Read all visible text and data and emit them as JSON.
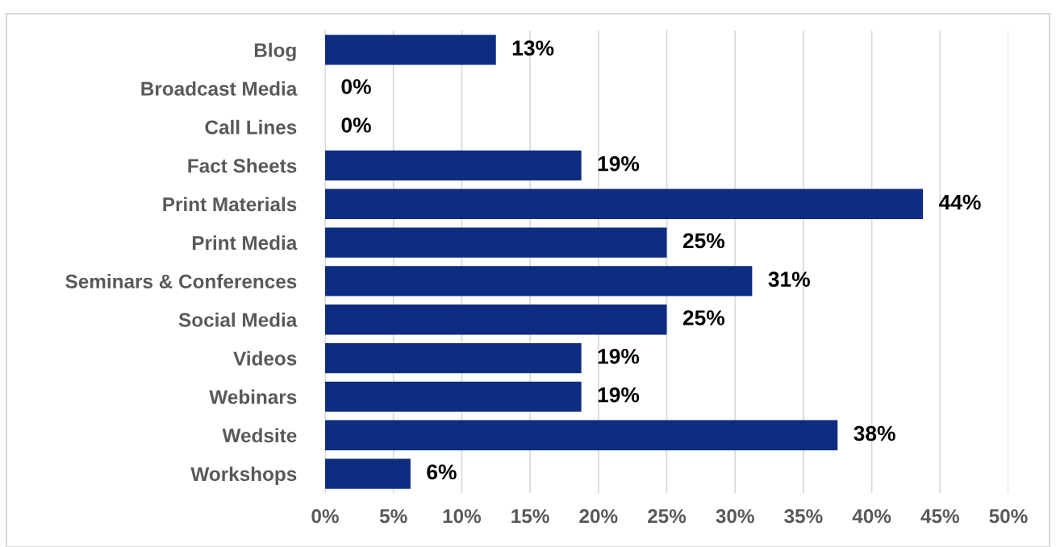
{
  "chart_data": {
    "type": "bar",
    "orientation": "horizontal",
    "categories": [
      "Blog",
      "Broadcast Media",
      "Call Lines",
      "Fact Sheets",
      "Print Materials",
      "Print Media",
      "Seminars & Conferences",
      "Social Media",
      "Videos",
      "Webinars",
      "Wedsite",
      "Workshops"
    ],
    "values": [
      12.5,
      0,
      0,
      18.75,
      43.75,
      25,
      31.25,
      25,
      18.75,
      18.75,
      37.5,
      6.25
    ],
    "value_labels": [
      "13%",
      "0%",
      "0%",
      "19%",
      "44%",
      "25%",
      "31%",
      "25%",
      "19%",
      "19%",
      "38%",
      "6%"
    ],
    "color": "#0e2d80",
    "xlim": [
      0,
      50
    ],
    "xticks": [
      {
        "value": 0,
        "label": "0%"
      },
      {
        "value": 5,
        "label": "5%"
      },
      {
        "value": 10,
        "label": "10%"
      },
      {
        "value": 15,
        "label": "15%"
      },
      {
        "value": 20,
        "label": "20%"
      },
      {
        "value": 25,
        "label": "25%"
      },
      {
        "value": 30,
        "label": "30%"
      },
      {
        "value": 35,
        "label": "35%"
      },
      {
        "value": 40,
        "label": "40%"
      },
      {
        "value": 45,
        "label": "45%"
      },
      {
        "value": 50,
        "label": "50%"
      }
    ],
    "grid": "x"
  }
}
